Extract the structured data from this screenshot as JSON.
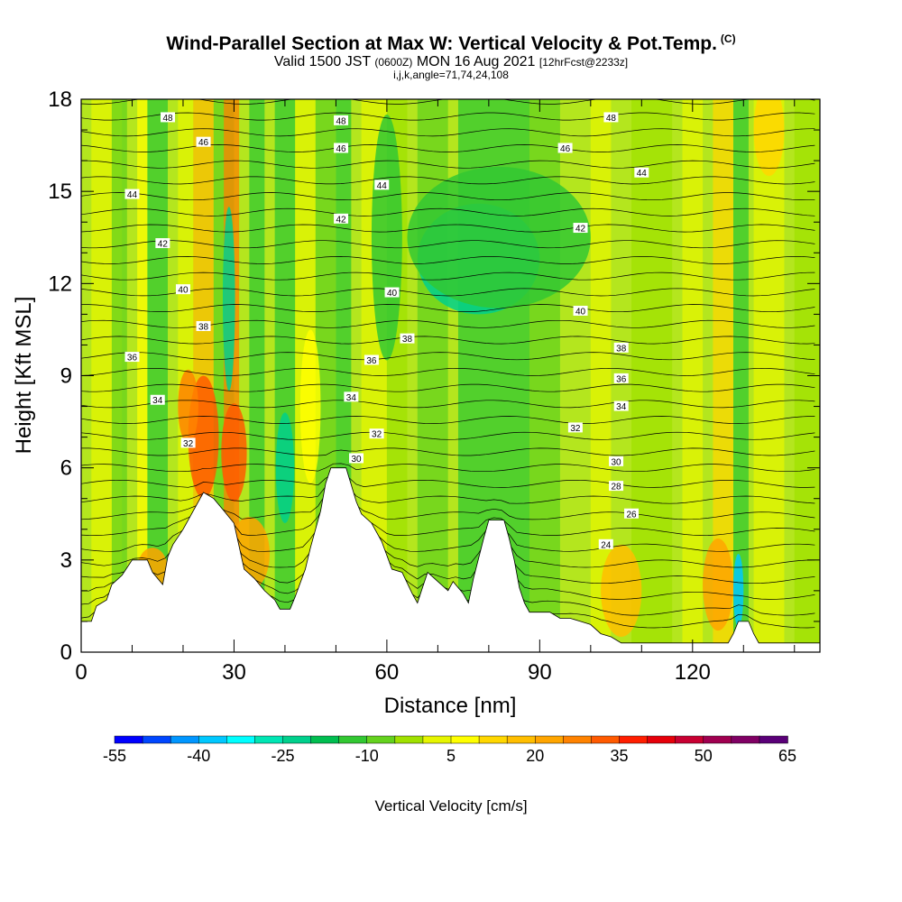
{
  "header": {
    "title": "Wind-Parallel Section at Max W: Vertical Velocity & Pot.Temp.",
    "copyright": "(C)",
    "valid_prefix": "Valid 1500 JST",
    "valid_utc": "(0600Z)",
    "valid_date": "MON 16 Aug 2021",
    "forecast": "[12hrFcst@2233z]",
    "params": "i,j,k,angle=71,74,24,108"
  },
  "chart_data": {
    "type": "heatmap",
    "xlabel": "Distance [nm]",
    "ylabel": "Height [Kft MSL]",
    "xlim": [
      0,
      145
    ],
    "ylim": [
      0,
      18
    ],
    "x_ticks": [
      0,
      30,
      60,
      90,
      120
    ],
    "y_ticks": [
      0,
      3,
      6,
      9,
      12,
      15,
      18
    ],
    "colorbar": {
      "label": "Vertical Velocity [cm/s]",
      "ticks": [
        -55,
        -40,
        -25,
        -10,
        5,
        20,
        35,
        50,
        65
      ],
      "colors": [
        "#0000ff",
        "#0046ff",
        "#0096ff",
        "#00c8ff",
        "#00ffff",
        "#00e6b4",
        "#00d08c",
        "#00be50",
        "#32c832",
        "#64d21e",
        "#a0e100",
        "#e6f500",
        "#ffff00",
        "#ffd700",
        "#ffbe00",
        "#ffa500",
        "#ff8200",
        "#ff5a00",
        "#ff1e00",
        "#e6000a",
        "#c80032",
        "#a00050",
        "#800064",
        "#5a0078"
      ]
    },
    "terrain_kft": [
      [
        0,
        1.0
      ],
      [
        2,
        1.0
      ],
      [
        3,
        1.5
      ],
      [
        5,
        1.7
      ],
      [
        6,
        2.2
      ],
      [
        8,
        2.5
      ],
      [
        10,
        3.0
      ],
      [
        13,
        3.0
      ],
      [
        14,
        2.6
      ],
      [
        15,
        2.4
      ],
      [
        16,
        2.2
      ],
      [
        17,
        3.1
      ],
      [
        18,
        3.5
      ],
      [
        20,
        4.0
      ],
      [
        22,
        4.6
      ],
      [
        24,
        5.2
      ],
      [
        26,
        5.0
      ],
      [
        28,
        4.6
      ],
      [
        30,
        4.2
      ],
      [
        32,
        2.7
      ],
      [
        34,
        2.4
      ],
      [
        36,
        2.0
      ],
      [
        38,
        1.7
      ],
      [
        39,
        1.4
      ],
      [
        41,
        1.4
      ],
      [
        42,
        1.8
      ],
      [
        44,
        2.7
      ],
      [
        45,
        3.4
      ],
      [
        47,
        4.6
      ],
      [
        48,
        5.5
      ],
      [
        49,
        6.0
      ],
      [
        52,
        6.0
      ],
      [
        54,
        4.9
      ],
      [
        55,
        4.5
      ],
      [
        57,
        4.2
      ],
      [
        59,
        3.6
      ],
      [
        61,
        2.7
      ],
      [
        63,
        2.6
      ],
      [
        65,
        1.9
      ],
      [
        66,
        1.6
      ],
      [
        67,
        2.1
      ],
      [
        68,
        2.6
      ],
      [
        70,
        2.3
      ],
      [
        72,
        2.0
      ],
      [
        73,
        2.3
      ],
      [
        75,
        1.9
      ],
      [
        76,
        1.6
      ],
      [
        77,
        2.4
      ],
      [
        79,
        3.7
      ],
      [
        80,
        4.3
      ],
      [
        83,
        4.3
      ],
      [
        84,
        3.7
      ],
      [
        85,
        3.0
      ],
      [
        86,
        2.1
      ],
      [
        87,
        1.6
      ],
      [
        88,
        1.3
      ],
      [
        90,
        1.3
      ],
      [
        92,
        1.3
      ],
      [
        94,
        1.1
      ],
      [
        96,
        1.1
      ],
      [
        98,
        1.0
      ],
      [
        100,
        0.9
      ],
      [
        102,
        0.6
      ],
      [
        104,
        0.5
      ],
      [
        106,
        0.3
      ],
      [
        110,
        0.3
      ],
      [
        115,
        0.3
      ],
      [
        120,
        0.3
      ],
      [
        125,
        0.3
      ],
      [
        127,
        0.3
      ],
      [
        128,
        0.6
      ],
      [
        129,
        1.0
      ],
      [
        131,
        1.0
      ],
      [
        132,
        0.6
      ],
      [
        133,
        0.3
      ],
      [
        140,
        0.3
      ],
      [
        145,
        0.3
      ]
    ],
    "isentrope_labels": [
      {
        "x": 17,
        "y": 17.4,
        "text": "48"
      },
      {
        "x": 51,
        "y": 17.3,
        "text": "48"
      },
      {
        "x": 104,
        "y": 17.4,
        "text": "48"
      },
      {
        "x": 24,
        "y": 16.6,
        "text": "46"
      },
      {
        "x": 51,
        "y": 16.4,
        "text": "46"
      },
      {
        "x": 95,
        "y": 16.4,
        "text": "46"
      },
      {
        "x": 10,
        "y": 14.9,
        "text": "44"
      },
      {
        "x": 59,
        "y": 15.2,
        "text": "44"
      },
      {
        "x": 110,
        "y": 15.6,
        "text": "44"
      },
      {
        "x": 51,
        "y": 14.1,
        "text": "42"
      },
      {
        "x": 16,
        "y": 13.3,
        "text": "42"
      },
      {
        "x": 98,
        "y": 13.8,
        "text": "42"
      },
      {
        "x": 20,
        "y": 11.8,
        "text": "40"
      },
      {
        "x": 61,
        "y": 11.7,
        "text": "40"
      },
      {
        "x": 98,
        "y": 11.1,
        "text": "40"
      },
      {
        "x": 24,
        "y": 10.6,
        "text": "38"
      },
      {
        "x": 64,
        "y": 10.2,
        "text": "38"
      },
      {
        "x": 106,
        "y": 9.9,
        "text": "38"
      },
      {
        "x": 10,
        "y": 9.6,
        "text": "36"
      },
      {
        "x": 57,
        "y": 9.5,
        "text": "36"
      },
      {
        "x": 106,
        "y": 8.9,
        "text": "36"
      },
      {
        "x": 15,
        "y": 8.2,
        "text": "34"
      },
      {
        "x": 53,
        "y": 8.3,
        "text": "34"
      },
      {
        "x": 106,
        "y": 8.0,
        "text": "34"
      },
      {
        "x": 21,
        "y": 6.8,
        "text": "32"
      },
      {
        "x": 58,
        "y": 7.1,
        "text": "32"
      },
      {
        "x": 97,
        "y": 7.3,
        "text": "32"
      },
      {
        "x": 54,
        "y": 6.3,
        "text": "30"
      },
      {
        "x": 105,
        "y": 6.2,
        "text": "30"
      },
      {
        "x": 105,
        "y": 5.4,
        "text": "28"
      },
      {
        "x": 108,
        "y": 4.5,
        "text": "26"
      },
      {
        "x": 103,
        "y": 3.5,
        "text": "24"
      }
    ]
  }
}
